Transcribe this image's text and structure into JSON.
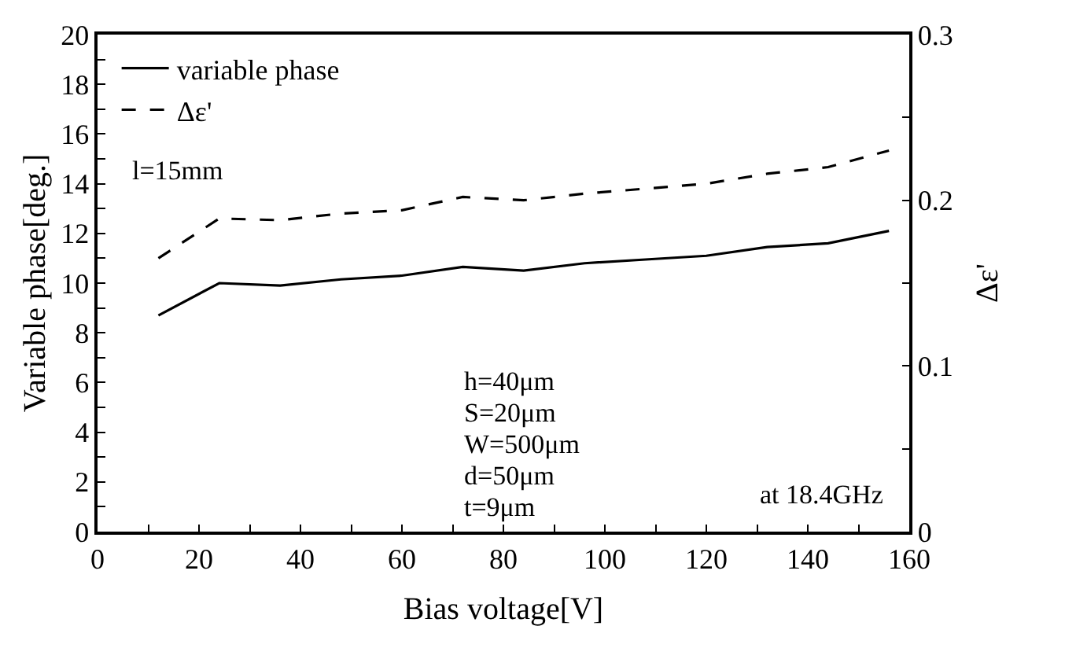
{
  "chart_data": {
    "type": "line",
    "xlabel": "Bias voltage[V]",
    "ylabel": "Variable phase[deg.]",
    "y2label": "Δε'",
    "x": [
      12,
      24,
      36,
      48,
      60,
      72,
      84,
      96,
      108,
      120,
      132,
      144,
      156
    ],
    "series": [
      {
        "name": "variable phase",
        "color": "#000000",
        "line_style": "solid",
        "values": [
          8.7,
          10.0,
          9.9,
          10.15,
          10.3,
          10.65,
          10.5,
          10.8,
          10.95,
          11.1,
          11.45,
          11.6,
          12.1
        ]
      },
      {
        "name": "Δε'",
        "color": "#000000",
        "line_style": "dashed",
        "axis": "y2",
        "values": [
          0.165,
          0.189,
          0.188,
          0.192,
          0.194,
          0.202,
          0.2,
          0.204,
          0.207,
          0.21,
          0.216,
          0.22,
          0.23
        ]
      }
    ],
    "xlim": [
      0,
      160
    ],
    "xticks": [
      0,
      {
        "value": 10,
        "label": null
      },
      20,
      {
        "value": 30,
        "label": null
      },
      40,
      {
        "value": 50,
        "label": null
      },
      60,
      {
        "value": 70,
        "label": null
      },
      80,
      {
        "value": 90,
        "label": null
      },
      100,
      {
        "value": 110,
        "label": null
      },
      120,
      {
        "value": 130,
        "label": null
      },
      140,
      {
        "value": 150,
        "label": null
      },
      160
    ],
    "ylim": [
      0,
      20
    ],
    "yticks": [
      0,
      {
        "value": 1,
        "label": null
      },
      2,
      {
        "value": 3,
        "label": null
      },
      4,
      {
        "value": 5,
        "label": null
      },
      6,
      {
        "value": 7,
        "label": null
      },
      8,
      {
        "value": 9,
        "label": null
      },
      10,
      {
        "value": 11,
        "label": null
      },
      12,
      {
        "value": 13,
        "label": null
      },
      14,
      {
        "value": 15,
        "label": null
      },
      16,
      {
        "value": 17,
        "label": null
      },
      18,
      {
        "value": 19,
        "label": null
      },
      20
    ],
    "y2lim": [
      0,
      0.3
    ],
    "y2ticks": [
      0,
      {
        "value": 0.05,
        "label": null
      },
      0.1,
      {
        "value": 0.15,
        "label": null
      },
      0.2,
      {
        "value": 0.25,
        "label": null
      },
      0.3
    ],
    "annotations": [
      "l=15mm",
      "h=40μm",
      "S=20μm",
      "W=500μm",
      "d=50μm",
      "t=9μm",
      "at 18.4GHz"
    ],
    "legend": "top left",
    "marker": "none"
  }
}
